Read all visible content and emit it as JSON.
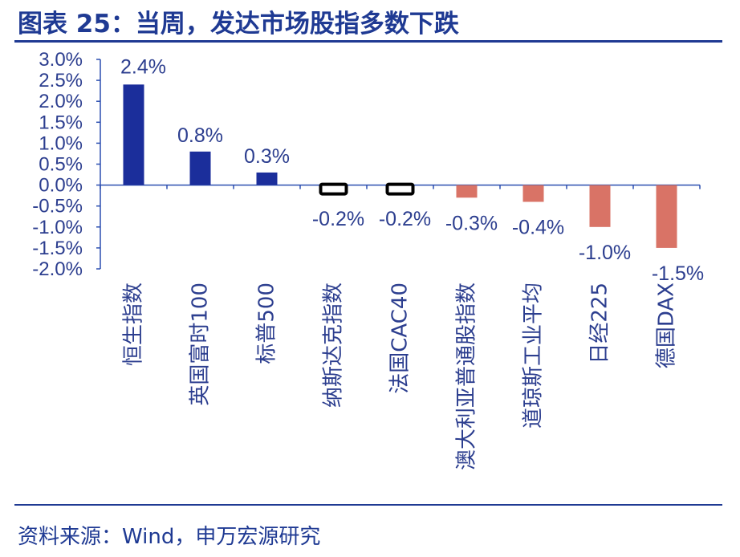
{
  "title": "图表 25：当周，发达市场股指多数下跌",
  "source": "资料来源：Wind，申万宏源研究",
  "colors": {
    "positive": "#1b2e9b",
    "negative": "#d97366",
    "axis": "#2c4fb0",
    "text": "#2c3e8f"
  },
  "chart_data": {
    "type": "bar",
    "categories": [
      "恒生指数",
      "英国富时100",
      "标普500",
      "纳斯达克指数",
      "法国CAC40",
      "澳大利亚普通股指数",
      "道琼斯工业平均",
      "日经225",
      "德国DAX"
    ],
    "values": [
      2.4,
      0.8,
      0.3,
      -0.2,
      -0.2,
      -0.3,
      -0.4,
      -1.0,
      -1.5
    ],
    "data_labels": [
      "2.4%",
      "0.8%",
      "0.3%",
      "-0.2%",
      "-0.2%",
      "-0.3%",
      "-0.4%",
      "-1.0%",
      "-1.5%"
    ],
    "y_ticks": [
      "3.0%",
      "2.5%",
      "2.0%",
      "1.5%",
      "1.0%",
      "0.5%",
      "0.0%",
      "-0.5%",
      "-1.0%",
      "-1.5%",
      "-2.0%"
    ],
    "ylim": [
      -2.0,
      3.0
    ],
    "grid": false,
    "legend": "none"
  }
}
